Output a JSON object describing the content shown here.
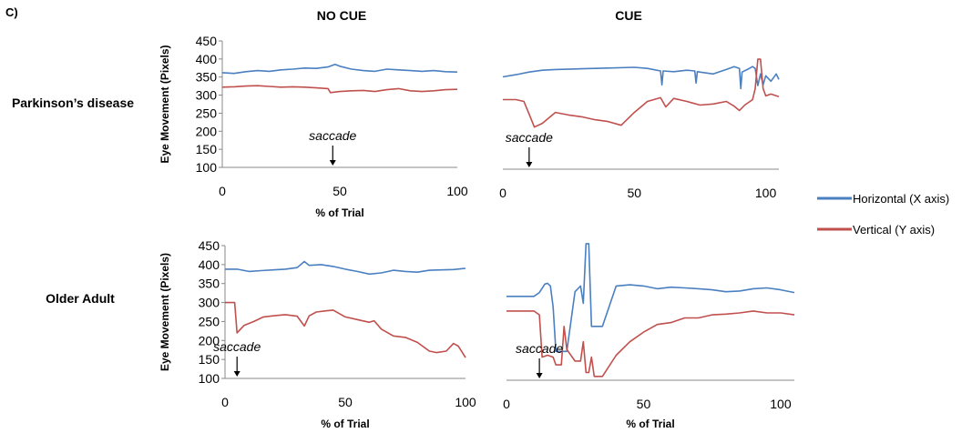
{
  "panel_label": "C)",
  "column_titles": [
    "NO CUE",
    "CUE"
  ],
  "row_labels": [
    "Parkinson’s disease",
    "Older Adult"
  ],
  "legend": [
    {
      "label": "Horizontal (X axis)",
      "color": "#4a7fc0"
    },
    {
      "label": "Vertical (Y axis)",
      "color": "#c0504d"
    }
  ],
  "chart_data": [
    {
      "type": "line",
      "id": "pd_nocue",
      "ylabel": "Eye Movement (Pixels)",
      "xlabel": "% of Trial",
      "ylim": [
        100,
        450
      ],
      "yticks": [
        100,
        150,
        200,
        250,
        300,
        350,
        400,
        450
      ],
      "xlim": [
        0,
        100
      ],
      "xticks": [
        0,
        50,
        100
      ],
      "show_y_axis": true,
      "annotation": {
        "text": "saccade",
        "x": 47
      },
      "series": [
        {
          "name": "Horizontal (X axis)",
          "color": "#4a7fc0",
          "x": [
            0,
            5,
            10,
            15,
            20,
            25,
            30,
            35,
            40,
            45,
            48,
            50,
            55,
            60,
            65,
            70,
            75,
            80,
            85,
            90,
            95,
            100
          ],
          "y": [
            362,
            360,
            365,
            368,
            366,
            370,
            372,
            375,
            374,
            378,
            385,
            380,
            372,
            368,
            366,
            372,
            370,
            368,
            366,
            368,
            365,
            364
          ]
        },
        {
          "name": "Vertical (Y axis)",
          "color": "#c0504d",
          "x": [
            0,
            5,
            10,
            15,
            20,
            25,
            30,
            35,
            40,
            45,
            46,
            50,
            55,
            60,
            65,
            70,
            75,
            80,
            85,
            90,
            95,
            100
          ],
          "y": [
            322,
            323,
            325,
            326,
            324,
            322,
            323,
            322,
            320,
            318,
            307,
            310,
            312,
            313,
            310,
            315,
            318,
            312,
            310,
            312,
            315,
            316
          ]
        }
      ]
    },
    {
      "type": "line",
      "id": "pd_cue",
      "ylabel": "",
      "xlabel": "",
      "ylim": [
        100,
        450
      ],
      "yticks": [
        100,
        150,
        200,
        250,
        300,
        350,
        400,
        450
      ],
      "xlim": [
        0,
        105
      ],
      "xticks": [
        0,
        50,
        100
      ],
      "show_y_axis": false,
      "annotation": {
        "text": "saccade",
        "x": 10
      },
      "series": [
        {
          "name": "Horizontal (X axis)",
          "color": "#4a7fc0",
          "x": [
            0,
            5,
            10,
            15,
            20,
            30,
            40,
            50,
            55,
            60,
            60.5,
            61,
            65,
            70,
            73,
            73.5,
            74,
            80,
            85,
            88,
            90,
            90.5,
            91,
            93,
            95,
            96,
            97,
            98,
            99,
            100,
            102,
            104,
            105
          ],
          "y": [
            352,
            358,
            365,
            370,
            372,
            374,
            376,
            378,
            375,
            368,
            330,
            368,
            366,
            370,
            368,
            335,
            366,
            360,
            372,
            380,
            375,
            320,
            365,
            372,
            380,
            375,
            328,
            360,
            330,
            355,
            340,
            360,
            345
          ]
        },
        {
          "name": "Vertical (Y axis)",
          "color": "#c0504d",
          "x": [
            0,
            5,
            8,
            10,
            12,
            15,
            20,
            25,
            30,
            35,
            40,
            45,
            50,
            55,
            60,
            62,
            65,
            70,
            75,
            80,
            85,
            88,
            90,
            92,
            94,
            95,
            96,
            97,
            98,
            99,
            100,
            102,
            105
          ],
          "y": [
            290,
            290,
            285,
            250,
            215,
            225,
            255,
            248,
            243,
            235,
            230,
            220,
            255,
            285,
            295,
            270,
            293,
            285,
            275,
            278,
            285,
            272,
            260,
            275,
            285,
            290,
            320,
            400,
            400,
            320,
            300,
            305,
            298
          ]
        }
      ]
    },
    {
      "type": "line",
      "id": "oa_nocue",
      "ylabel": "Eye Movement (Pixels)",
      "xlabel": "% of Trial",
      "ylim": [
        100,
        450
      ],
      "yticks": [
        100,
        150,
        200,
        250,
        300,
        350,
        400,
        450
      ],
      "xlim": [
        0,
        100
      ],
      "xticks": [
        0,
        50,
        100
      ],
      "show_y_axis": true,
      "annotation": {
        "text": "saccade",
        "x": 5
      },
      "series": [
        {
          "name": "Horizontal (X axis)",
          "color": "#4a7fc0",
          "x": [
            0,
            5,
            10,
            15,
            20,
            25,
            30,
            33,
            35,
            40,
            45,
            50,
            55,
            60,
            65,
            70,
            75,
            80,
            85,
            90,
            95,
            100
          ],
          "y": [
            388,
            388,
            382,
            384,
            386,
            388,
            392,
            408,
            398,
            400,
            395,
            388,
            382,
            375,
            378,
            385,
            382,
            380,
            385,
            386,
            387,
            390
          ]
        },
        {
          "name": "Vertical (Y axis)",
          "color": "#c0504d",
          "x": [
            0,
            4,
            5,
            8,
            12,
            16,
            20,
            25,
            30,
            33,
            35,
            38,
            42,
            45,
            50,
            55,
            60,
            62,
            65,
            70,
            75,
            80,
            85,
            88,
            92,
            95,
            97,
            100
          ],
          "y": [
            300,
            300,
            220,
            240,
            250,
            262,
            265,
            268,
            264,
            238,
            265,
            275,
            278,
            280,
            262,
            255,
            248,
            252,
            230,
            212,
            208,
            195,
            172,
            168,
            172,
            192,
            185,
            155
          ]
        }
      ]
    },
    {
      "type": "line",
      "id": "oa_cue",
      "ylabel": "",
      "xlabel": "% of Trial",
      "ylim": [
        100,
        450
      ],
      "yticks": [
        100,
        150,
        200,
        250,
        300,
        350,
        400,
        450
      ],
      "xlim": [
        0,
        105
      ],
      "xticks": [
        0,
        50,
        100
      ],
      "show_y_axis": false,
      "annotation": {
        "text": "saccade",
        "x": 12
      },
      "series": [
        {
          "name": "Horizontal (X axis)",
          "color": "#4a7fc0",
          "x": [
            0,
            5,
            10,
            12,
            14,
            15,
            16,
            17,
            18,
            20,
            22,
            25,
            27,
            28,
            29,
            30,
            31,
            32,
            35,
            40,
            45,
            50,
            55,
            60,
            65,
            70,
            75,
            80,
            85,
            90,
            95,
            100,
            105
          ],
          "y": [
            318,
            318,
            318,
            328,
            350,
            352,
            345,
            290,
            175,
            175,
            175,
            330,
            345,
            300,
            455,
            455,
            240,
            240,
            240,
            345,
            348,
            345,
            338,
            342,
            340,
            338,
            335,
            330,
            332,
            338,
            340,
            335,
            328
          ]
        },
        {
          "name": "Vertical (Y axis)",
          "color": "#c0504d",
          "x": [
            0,
            5,
            10,
            12,
            13,
            15,
            17,
            18,
            20,
            21,
            22,
            25,
            27,
            28,
            29,
            30,
            31,
            32,
            35,
            40,
            45,
            50,
            55,
            60,
            65,
            70,
            75,
            80,
            85,
            90,
            95,
            100,
            105
          ],
          "y": [
            280,
            280,
            280,
            270,
            160,
            165,
            160,
            140,
            140,
            240,
            180,
            150,
            150,
            200,
            120,
            120,
            160,
            110,
            110,
            165,
            200,
            225,
            245,
            250,
            262,
            262,
            270,
            272,
            275,
            280,
            275,
            275,
            270
          ]
        }
      ]
    }
  ]
}
